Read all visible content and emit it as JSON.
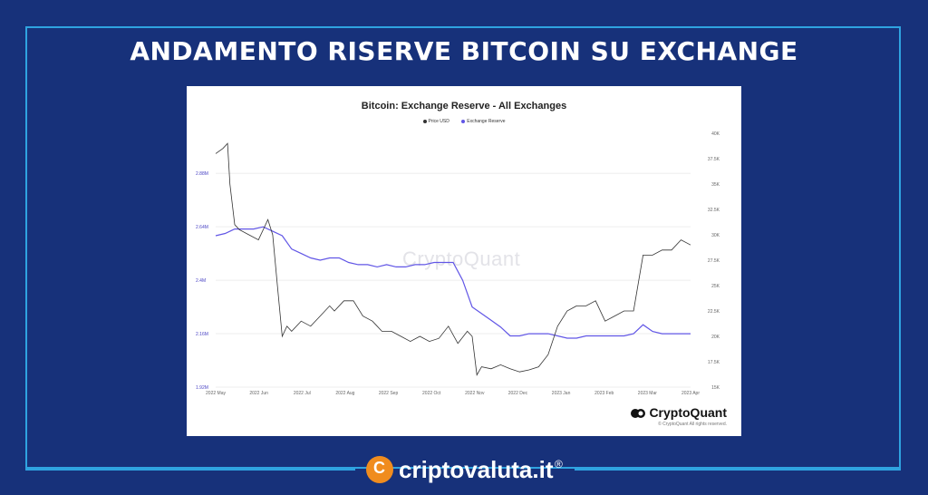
{
  "headline": "ANDAMENTO RISERVE BITCOIN SU EXCHANGE",
  "chart_data": {
    "type": "line",
    "title": "Bitcoin: Exchange Reserve - All Exchanges",
    "watermark": "CryptoQuant",
    "legend": [
      {
        "name": "Price USD",
        "color": "#333333"
      },
      {
        "name": "Exchange Reserve",
        "color": "#6156e6"
      }
    ],
    "x_ticks": [
      "2022 May",
      "2022 Jun",
      "2022 Jul",
      "2022 Aug",
      "2022 Sep",
      "2022 Oct",
      "2022 Nov",
      "2022 Dec",
      "2023 Jan",
      "2023 Feb",
      "2023 Mar",
      "2023 Apr"
    ],
    "left_axis": {
      "ticks": [
        "1.92M",
        "2.16M",
        "2.4M",
        "2.64M",
        "2.88M"
      ],
      "values": [
        1.92,
        2.16,
        2.4,
        2.64,
        2.88
      ],
      "ylim": [
        1.92,
        3.06
      ]
    },
    "right_axis": {
      "ticks": [
        "15K",
        "17.5K",
        "20K",
        "22.5K",
        "25K",
        "27.5K",
        "30K",
        "32.5K",
        "35K",
        "37.5K",
        "40K"
      ],
      "values": [
        15,
        17.5,
        20,
        22.5,
        25,
        27.5,
        30,
        32.5,
        35,
        37.5,
        40
      ]
    },
    "series": [
      {
        "name": "Exchange Reserve",
        "axis": "left",
        "color": "#6156e6",
        "x": [
          0,
          0.02,
          0.04,
          0.06,
          0.08,
          0.1,
          0.12,
          0.14,
          0.16,
          0.18,
          0.2,
          0.22,
          0.24,
          0.26,
          0.28,
          0.3,
          0.32,
          0.34,
          0.36,
          0.38,
          0.4,
          0.42,
          0.44,
          0.46,
          0.48,
          0.5,
          0.52,
          0.54,
          0.56,
          0.58,
          0.6,
          0.62,
          0.64,
          0.66,
          0.68,
          0.7,
          0.72,
          0.74,
          0.76,
          0.78,
          0.8,
          0.82,
          0.84,
          0.86,
          0.88,
          0.9,
          0.92,
          0.94,
          0.96,
          1.0
        ],
        "y": [
          2.6,
          2.61,
          2.63,
          2.63,
          2.63,
          2.64,
          2.62,
          2.6,
          2.54,
          2.52,
          2.5,
          2.49,
          2.5,
          2.5,
          2.48,
          2.47,
          2.47,
          2.46,
          2.47,
          2.46,
          2.46,
          2.47,
          2.47,
          2.48,
          2.48,
          2.48,
          2.4,
          2.28,
          2.25,
          2.22,
          2.19,
          2.15,
          2.15,
          2.16,
          2.16,
          2.16,
          2.15,
          2.14,
          2.14,
          2.15,
          2.15,
          2.15,
          2.15,
          2.15,
          2.16,
          2.2,
          2.17,
          2.16,
          2.16,
          2.16
        ]
      },
      {
        "name": "Price USD",
        "axis": "right",
        "color": "#333333",
        "x": [
          0,
          0.015,
          0.025,
          0.03,
          0.04,
          0.05,
          0.07,
          0.09,
          0.11,
          0.12,
          0.13,
          0.14,
          0.15,
          0.16,
          0.18,
          0.2,
          0.22,
          0.24,
          0.25,
          0.27,
          0.29,
          0.31,
          0.33,
          0.34,
          0.35,
          0.37,
          0.39,
          0.41,
          0.43,
          0.45,
          0.47,
          0.49,
          0.51,
          0.53,
          0.54,
          0.55,
          0.56,
          0.58,
          0.6,
          0.62,
          0.64,
          0.66,
          0.68,
          0.7,
          0.72,
          0.74,
          0.76,
          0.78,
          0.8,
          0.82,
          0.84,
          0.86,
          0.88,
          0.9,
          0.92,
          0.94,
          0.96,
          0.98,
          1.0
        ],
        "y": [
          38.0,
          38.5,
          39.0,
          35.0,
          31.0,
          30.5,
          30.0,
          29.5,
          31.5,
          30.0,
          25.0,
          20.0,
          21.0,
          20.5,
          21.5,
          21.0,
          22.0,
          23.0,
          22.5,
          23.5,
          23.5,
          22.0,
          21.5,
          21.0,
          20.5,
          20.5,
          20.0,
          19.5,
          20.0,
          19.5,
          19.8,
          21.0,
          19.3,
          20.5,
          20.0,
          16.2,
          17.0,
          16.8,
          17.2,
          16.8,
          16.5,
          16.7,
          17.0,
          18.2,
          21.0,
          22.5,
          23.0,
          23.0,
          23.5,
          21.5,
          22.0,
          22.5,
          22.5,
          28.0,
          28.0,
          28.5,
          28.5,
          29.5,
          29.0
        ]
      }
    ]
  },
  "brand": "CryptoQuant",
  "copyright": "© CryptoQuant All rights reserved.",
  "footer": {
    "site": "criptovaluta.it",
    "reg": "®",
    "logo_letter": "C"
  }
}
